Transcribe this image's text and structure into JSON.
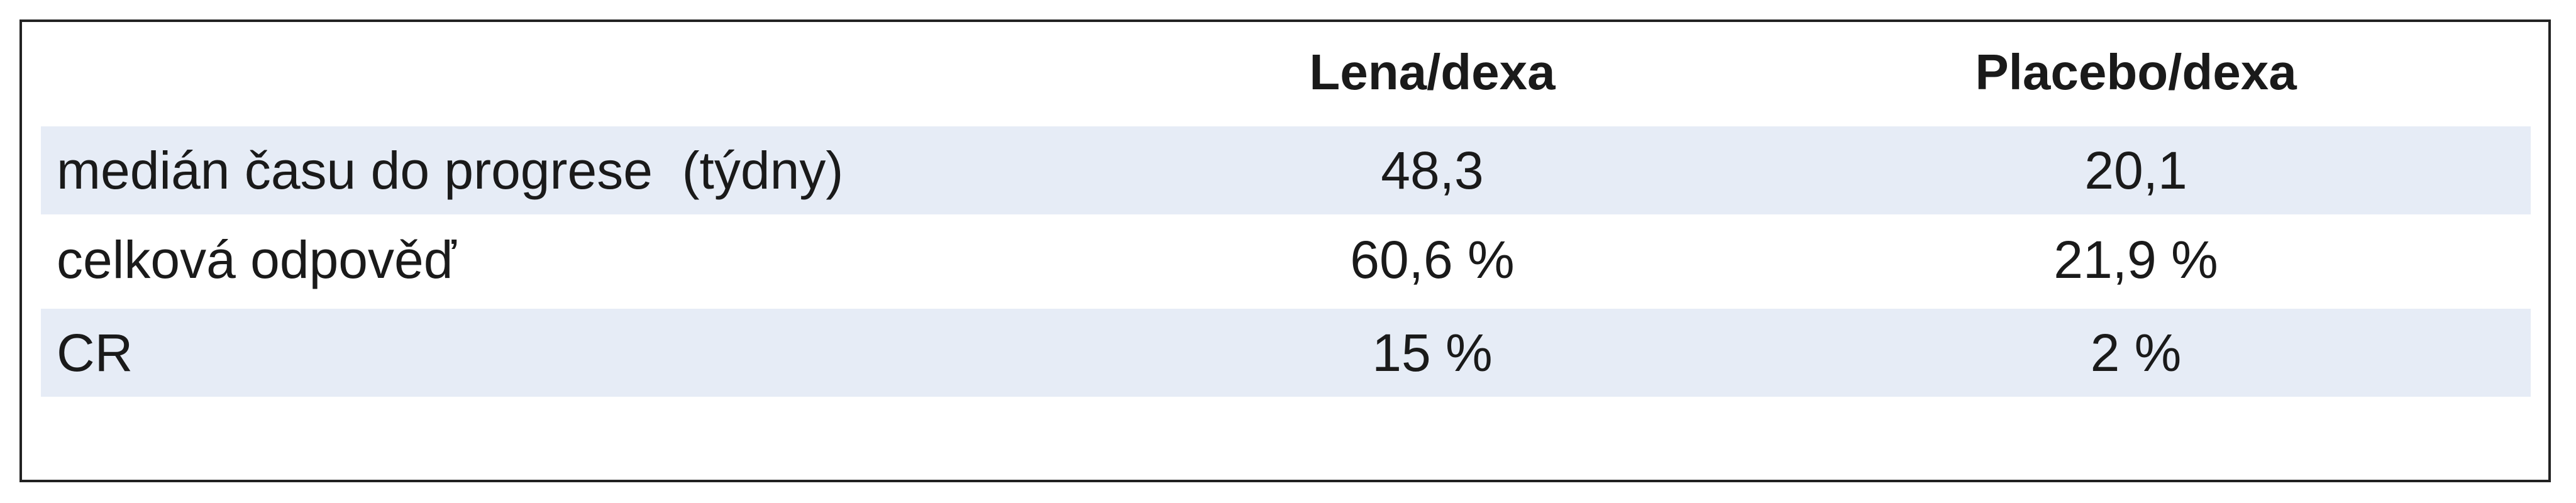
{
  "table": {
    "columns": [
      "Lena/dexa",
      "Placebo/dexa"
    ],
    "rows": [
      [
        "medián času do progrese  (týdny)",
        "48,3",
        "20,1"
      ],
      [
        "celková odpověď",
        "60,6 %",
        "21,9 %"
      ],
      [
        "CR",
        "15 %",
        "2 %"
      ]
    ]
  }
}
